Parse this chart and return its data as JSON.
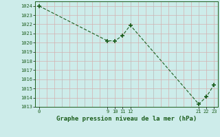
{
  "x_values": [
    0,
    9,
    10,
    11,
    12,
    21,
    22,
    23
  ],
  "y_values": [
    1024.0,
    1020.2,
    1020.2,
    1020.8,
    1021.9,
    1013.3,
    1014.1,
    1015.4
  ],
  "ylim": [
    1013,
    1024.5
  ],
  "xlim": [
    -0.5,
    23.5
  ],
  "yticks": [
    1013,
    1014,
    1015,
    1016,
    1017,
    1018,
    1019,
    1020,
    1021,
    1022,
    1023,
    1024
  ],
  "xtick_positions": [
    0,
    9,
    10,
    11,
    12,
    21,
    22,
    23
  ],
  "xtick_labels": [
    "0",
    "9",
    "10",
    "11",
    "12",
    "21",
    "22",
    "23"
  ],
  "line_color": "#1a5c1a",
  "marker_color": "#1a5c1a",
  "bg_color": "#cdecea",
  "grid_minor_color": "#d4b0b0",
  "grid_major_color": "#b8b8b8",
  "xlabel": "Graphe pression niveau de la mer (hPa)",
  "xlabel_fontsize": 6.5
}
